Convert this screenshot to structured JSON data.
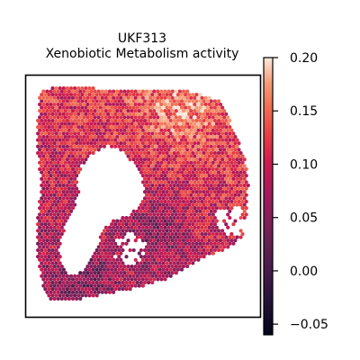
{
  "chart_data": {
    "type": "scatter",
    "title_lines": [
      "UKF313",
      "Xenobiotic Metabolism activity"
    ],
    "colorbar": {
      "colormap": "rocket",
      "min": -0.06,
      "max": 0.2,
      "ticks": [
        0.2,
        0.15,
        0.1,
        0.05,
        0.0,
        -0.05
      ],
      "tick_labels": [
        "0.20",
        "0.15",
        "0.10",
        "0.05",
        "0.00",
        "−0.05"
      ]
    },
    "axes_visible": false,
    "grid": false
  }
}
